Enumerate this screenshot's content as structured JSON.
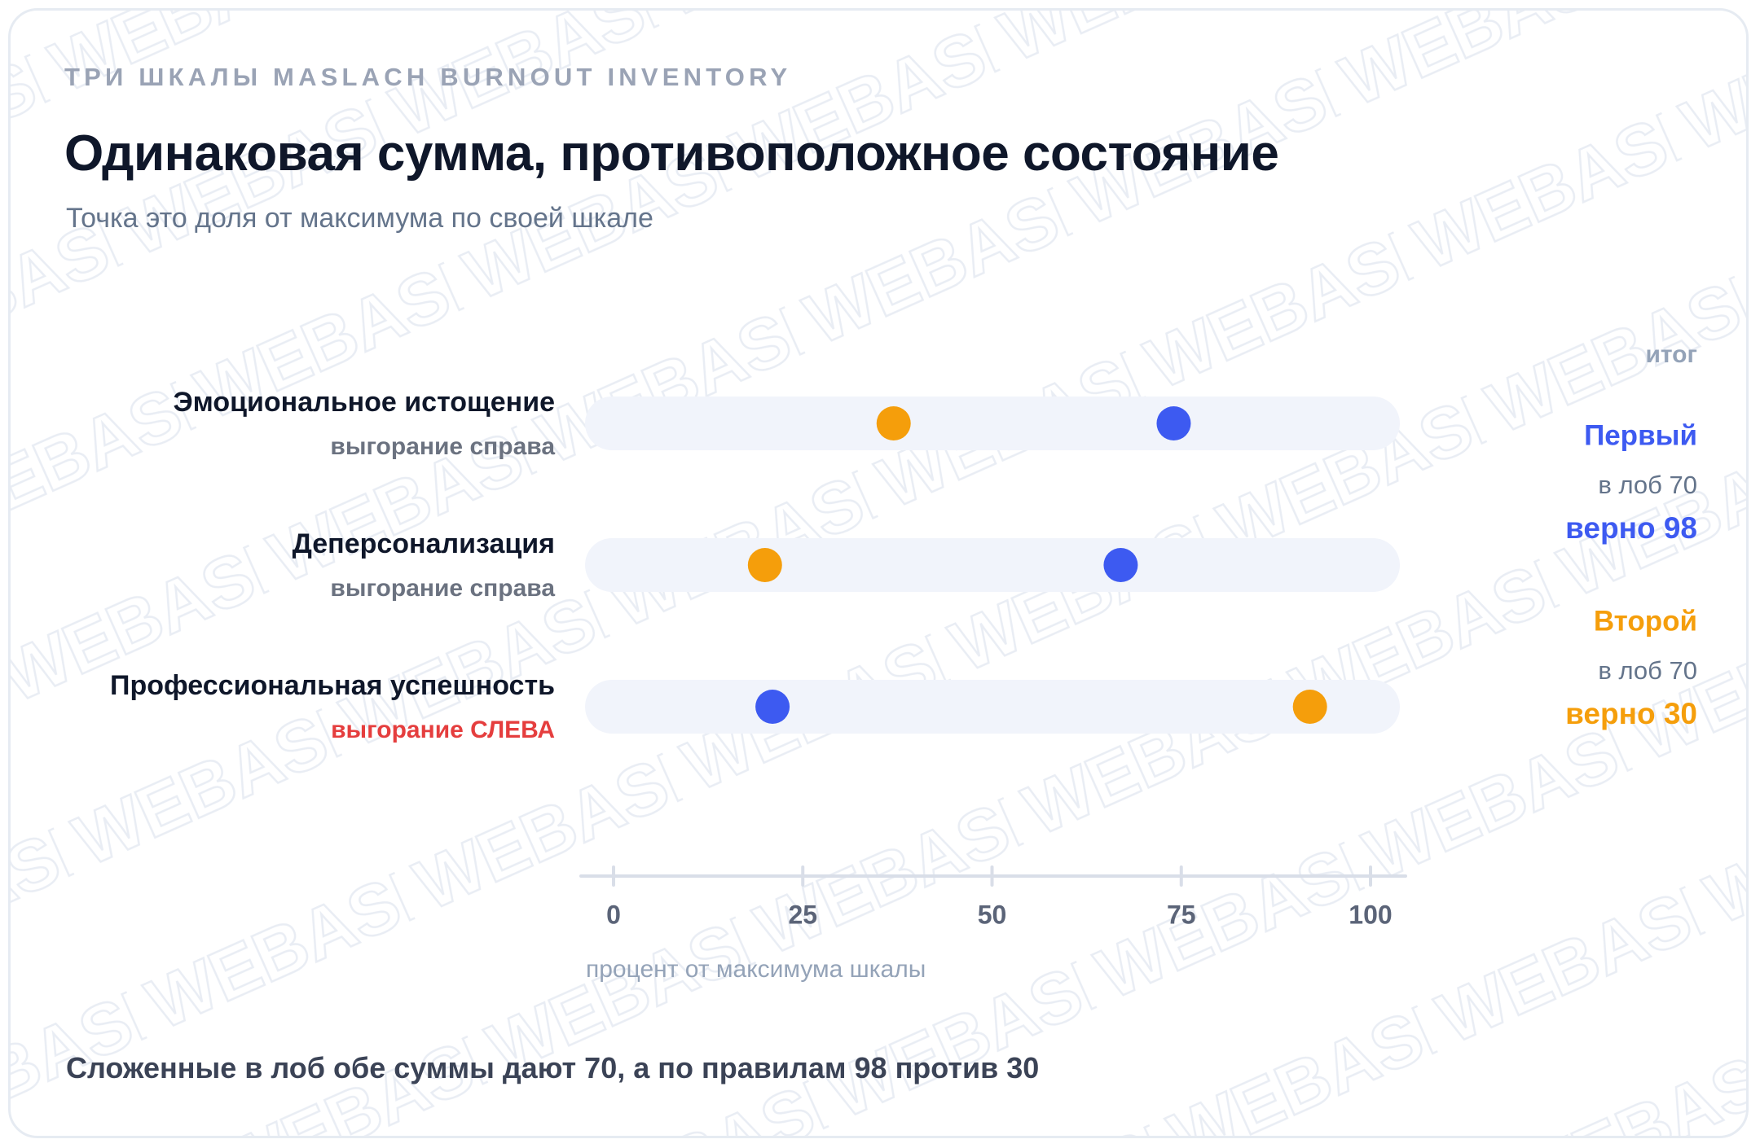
{
  "header": {
    "kicker": "ТРИ ШКАЛЫ MASLACH BURNOUT INVENTORY",
    "title": "Одинаковая сумма, противоположное состояние",
    "subtitle": "Точка это доля от максимума по своей шкале"
  },
  "footnote": "Сложенные в лоб обе суммы дают 70, а по правилам 98 против 30",
  "colors": {
    "first": "#3d5af1",
    "second": "#f59e0b",
    "track": "#f1f4fb",
    "axis": "#d9dee8",
    "label": "#0f172a",
    "sublabel": "#6b7280",
    "warning": "#e53e3e",
    "muted": "#94a3b8"
  },
  "chart_data": {
    "type": "dot",
    "categories": [
      {
        "label": "Эмоциональное истощение",
        "note": "выгорание справа",
        "note_warning": false
      },
      {
        "label": "Деперсонализация",
        "note": "выгорание справа",
        "note_warning": false
      },
      {
        "label": "Профессиональная успешность",
        "note": "выгорание СЛЕВА",
        "note_warning": true
      }
    ],
    "series": [
      {
        "name": "Первый",
        "color": "#3d5af1",
        "values": [
          74,
          67,
          21
        ]
      },
      {
        "name": "Второй",
        "color": "#f59e0b",
        "values": [
          37,
          20,
          92
        ]
      }
    ],
    "xlabel": "процент от максимума шкалы",
    "xlim": [
      0,
      100
    ],
    "xticks": [
      0,
      25,
      50,
      75,
      100
    ],
    "summary": {
      "heading": "итог",
      "items": [
        {
          "name": "Первый",
          "naive": "в лоб 70",
          "correct": "верно 98",
          "color": "#3d5af1"
        },
        {
          "name": "Второй",
          "naive": "в лоб 70",
          "correct": "верно 30",
          "color": "#f59e0b"
        }
      ]
    }
  }
}
